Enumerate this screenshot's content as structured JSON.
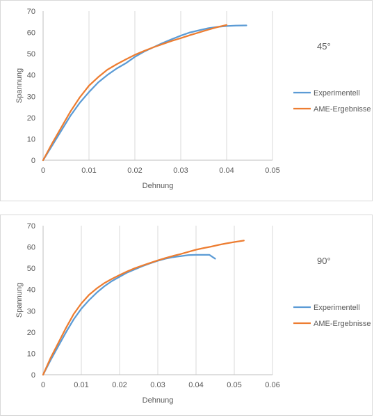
{
  "chart_data": [
    {
      "type": "line",
      "title": "45°",
      "xlabel": "Dehnung",
      "ylabel": "Spannung",
      "xlim": [
        0,
        0.05
      ],
      "ylim": [
        0,
        70
      ],
      "x_ticks": [
        "0",
        "0.01",
        "0.02",
        "0.03",
        "0.04",
        "0.05"
      ],
      "y_ticks": [
        "0",
        "10",
        "20",
        "30",
        "40",
        "50",
        "60",
        "70"
      ],
      "grid": "vertical",
      "legend_position": "right",
      "series": [
        {
          "name": "Experimentell",
          "color": "#5b9bd5",
          "x": [
            0,
            0.002,
            0.004,
            0.006,
            0.008,
            0.01,
            0.012,
            0.014,
            0.016,
            0.018,
            0.02,
            0.022,
            0.024,
            0.026,
            0.028,
            0.03,
            0.032,
            0.034,
            0.036,
            0.038,
            0.04,
            0.042,
            0.0443
          ],
          "y": [
            0,
            7,
            14,
            21,
            27,
            32,
            36.5,
            40,
            43,
            45.5,
            48.5,
            51,
            53,
            55,
            56.8,
            58.5,
            60,
            61,
            62,
            62.6,
            63,
            63.2,
            63.3
          ]
        },
        {
          "name": "AME-Ergebnisse",
          "color": "#ed7d31",
          "x": [
            0,
            0.002,
            0.004,
            0.006,
            0.008,
            0.01,
            0.012,
            0.014,
            0.016,
            0.018,
            0.02,
            0.022,
            0.024,
            0.026,
            0.028,
            0.03,
            0.032,
            0.034,
            0.036,
            0.038,
            0.04
          ],
          "y": [
            0,
            8,
            15.5,
            23,
            29.5,
            35,
            39,
            42.5,
            45,
            47.3,
            49.5,
            51.3,
            53,
            54.5,
            56,
            57.3,
            58.7,
            60,
            61.3,
            62.5,
            63.5
          ]
        }
      ]
    },
    {
      "type": "line",
      "title": "90°",
      "xlabel": "Dehnung",
      "ylabel": "Spannung",
      "xlim": [
        0,
        0.06
      ],
      "ylim": [
        0,
        70
      ],
      "x_ticks": [
        "0",
        "0.01",
        "0.02",
        "0.03",
        "0.04",
        "0.05",
        "0.06"
      ],
      "y_ticks": [
        "0",
        "10",
        "20",
        "30",
        "40",
        "50",
        "60",
        "70"
      ],
      "grid": "vertical",
      "legend_position": "right",
      "series": [
        {
          "name": "Experimentell",
          "color": "#5b9bd5",
          "x": [
            0,
            0.002,
            0.004,
            0.006,
            0.008,
            0.01,
            0.012,
            0.014,
            0.016,
            0.018,
            0.02,
            0.022,
            0.024,
            0.026,
            0.028,
            0.03,
            0.032,
            0.034,
            0.036,
            0.038,
            0.04,
            0.042,
            0.0435,
            0.045
          ],
          "y": [
            0,
            7,
            13.5,
            20,
            26,
            31,
            35,
            38.5,
            41.5,
            44,
            46,
            48,
            49.5,
            51,
            52.3,
            53.5,
            54.5,
            55.2,
            55.7,
            56.2,
            56.3,
            56.3,
            56.3,
            54.5
          ]
        },
        {
          "name": "AME-Ergebnisse",
          "color": "#ed7d31",
          "x": [
            0,
            0.002,
            0.004,
            0.006,
            0.008,
            0.01,
            0.012,
            0.014,
            0.016,
            0.018,
            0.02,
            0.022,
            0.024,
            0.026,
            0.028,
            0.03,
            0.032,
            0.034,
            0.036,
            0.038,
            0.04,
            0.042,
            0.044,
            0.046,
            0.048,
            0.05,
            0.0525
          ],
          "y": [
            0,
            8,
            15,
            22,
            28.5,
            33.5,
            37.5,
            40.5,
            43,
            45,
            46.8,
            48.5,
            50,
            51.3,
            52.5,
            53.7,
            54.8,
            55.8,
            56.7,
            57.7,
            58.7,
            59.5,
            60.2,
            61,
            61.7,
            62.3,
            63
          ]
        }
      ]
    }
  ]
}
